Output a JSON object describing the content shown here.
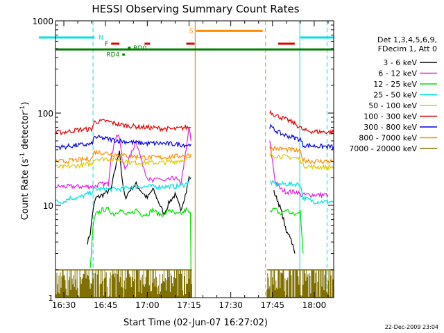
{
  "chart_data": {
    "type": "line",
    "title": "HESSI Observing Summary Count Rates",
    "xlabel": "Start Time (02-Jun-07 16:27:02)",
    "ylabel": "Count Rate (s⁻¹ detector⁻¹)",
    "ylabel_parts": {
      "pre": "Count Rate (s",
      "sup1": "-1",
      "mid": " detector",
      "sup2": "-1",
      "post": ")"
    },
    "x_ticks": [
      "16:30",
      "16:45",
      "17:00",
      "17:15",
      "17:30",
      "17:45",
      "18:00"
    ],
    "x_tick_minutes": [
      990,
      1005,
      1020,
      1035,
      1050,
      1065,
      1080
    ],
    "xlim_minutes": [
      987,
      1087
    ],
    "y_scale": "log",
    "ylim": [
      1,
      1000
    ],
    "y_ticks": [
      {
        "v": 1,
        "label": "1"
      },
      {
        "v": 10,
        "label": "10"
      },
      {
        "v": 100,
        "label": "100"
      },
      {
        "v": 1000,
        "label": "1000"
      }
    ],
    "legend": {
      "header": [
        "Det 1,3,4,5,6,9,",
        "FDecim 1, Att 0"
      ],
      "position": "right",
      "entries": [
        {
          "label": "3 - 6 keV",
          "color": "#000000"
        },
        {
          "label": "6 - 12 keV",
          "color": "#e020e0"
        },
        {
          "label": "12 - 25 keV",
          "color": "#00e000"
        },
        {
          "label": "25 - 50 keV",
          "color": "#00e0e0"
        },
        {
          "label": "50 - 100 keV",
          "color": "#e0c800"
        },
        {
          "label": "100 - 300 keV",
          "color": "#e00000"
        },
        {
          "label": "300 - 800 keV",
          "color": "#0000e0"
        },
        {
          "label": "800 - 7000 keV",
          "color": "#ff8c00"
        },
        {
          "label": "7000 - 20000 keV",
          "color": "#807000"
        }
      ]
    },
    "series": [
      {
        "name": "3 - 6 keV",
        "color": "#000000",
        "points": [
          [
            998.5,
            4
          ],
          [
            999.5,
            5
          ],
          [
            1000.5,
            9
          ],
          [
            1001.5,
            12
          ],
          [
            1004,
            13
          ],
          [
            1007,
            15
          ],
          [
            1009,
            30
          ],
          [
            1010,
            40
          ],
          [
            1011,
            18
          ],
          [
            1012,
            12
          ],
          [
            1014,
            15
          ],
          [
            1016,
            17
          ],
          [
            1018,
            14
          ],
          [
            1020,
            12
          ],
          [
            1022,
            15
          ],
          [
            1024,
            11
          ],
          [
            1026,
            8
          ],
          [
            1028,
            11
          ],
          [
            1030,
            13
          ],
          [
            1032,
            9
          ],
          [
            1034,
            14
          ],
          [
            1035,
            20
          ],
          [
            1035.7,
            20
          ]
        ],
        "points_b": [
          [
            1065.5,
            14
          ],
          [
            1067,
            11
          ],
          [
            1068,
            9
          ],
          [
            1069,
            7
          ],
          [
            1070,
            5
          ],
          [
            1071,
            5
          ],
          [
            1072,
            4
          ],
          [
            1073,
            3
          ]
        ]
      },
      {
        "name": "6 - 12 keV",
        "color": "#e020e0",
        "points": [
          [
            981,
            16
          ],
          [
            1001,
            16
          ],
          [
            1003,
            17
          ],
          [
            1006,
            17
          ],
          [
            1007,
            35
          ],
          [
            1008,
            45
          ],
          [
            1009,
            60
          ],
          [
            1010,
            55
          ],
          [
            1011,
            30
          ],
          [
            1012,
            25
          ],
          [
            1014,
            35
          ],
          [
            1016,
            50
          ],
          [
            1018,
            30
          ],
          [
            1020,
            20
          ],
          [
            1022,
            18
          ],
          [
            1024,
            20
          ],
          [
            1026,
            18
          ],
          [
            1028,
            19
          ],
          [
            1030,
            20
          ],
          [
            1032,
            17
          ],
          [
            1034,
            40
          ],
          [
            1035,
            70
          ],
          [
            1035.7,
            50
          ]
        ],
        "points_b": [
          [
            1064,
            50
          ],
          [
            1065,
            30
          ],
          [
            1066,
            18
          ],
          [
            1068,
            15
          ],
          [
            1070,
            14
          ],
          [
            1074,
            14
          ],
          [
            1075,
            13
          ],
          [
            1085,
            13
          ]
        ]
      },
      {
        "name": "12 - 25 keV",
        "color": "#00e000",
        "points": [
          [
            999.5,
            2
          ],
          [
            1000.5,
            6
          ],
          [
            1001.5,
            8
          ],
          [
            1004,
            9
          ],
          [
            1006,
            9
          ],
          [
            1008,
            8
          ],
          [
            1010,
            9
          ],
          [
            1012,
            8
          ],
          [
            1014,
            8
          ],
          [
            1016,
            9
          ],
          [
            1018,
            8
          ],
          [
            1020,
            8
          ],
          [
            1022,
            9
          ],
          [
            1024,
            8
          ],
          [
            1026,
            8
          ],
          [
            1028,
            9
          ],
          [
            1030,
            8
          ],
          [
            1032,
            8
          ],
          [
            1034,
            9
          ],
          [
            1035.5,
            8
          ],
          [
            1035.7,
            2
          ]
        ],
        "points_b": [
          [
            1064,
            9
          ],
          [
            1066,
            9
          ],
          [
            1068,
            8
          ],
          [
            1070,
            9
          ],
          [
            1072,
            8
          ],
          [
            1074,
            8
          ],
          [
            1075,
            9
          ],
          [
            1076,
            3
          ]
        ]
      },
      {
        "name": "25 - 50 keV",
        "color": "#00e0e0",
        "points": [
          [
            987,
            11
          ],
          [
            990,
            11
          ],
          [
            992,
            12
          ],
          [
            995,
            12
          ],
          [
            998,
            13
          ],
          [
            1000,
            14
          ],
          [
            1001,
            15
          ],
          [
            1005,
            15
          ],
          [
            1010,
            15
          ],
          [
            1015,
            16
          ],
          [
            1020,
            16
          ],
          [
            1025,
            16
          ],
          [
            1030,
            16
          ],
          [
            1034,
            17
          ],
          [
            1035.7,
            20
          ]
        ],
        "points_b": [
          [
            1064,
            18
          ],
          [
            1066,
            17
          ],
          [
            1070,
            17
          ],
          [
            1075,
            17
          ],
          [
            1076,
            12
          ],
          [
            1080,
            11
          ],
          [
            1087,
            11
          ]
        ]
      },
      {
        "name": "50 - 100 keV",
        "color": "#e0c800",
        "points": [
          [
            987,
            26
          ],
          [
            990,
            26
          ],
          [
            995,
            27
          ],
          [
            1000,
            28
          ],
          [
            1001,
            32
          ],
          [
            1005,
            32
          ],
          [
            1010,
            31
          ],
          [
            1015,
            29
          ],
          [
            1020,
            29
          ],
          [
            1025,
            29
          ],
          [
            1030,
            30
          ],
          [
            1035,
            32
          ],
          [
            1035.7,
            33
          ]
        ],
        "points_b": [
          [
            1064,
            35
          ],
          [
            1068,
            34
          ],
          [
            1072,
            33
          ],
          [
            1075,
            32
          ],
          [
            1076,
            27
          ],
          [
            1080,
            26
          ],
          [
            1087,
            26
          ]
        ]
      },
      {
        "name": "100 - 300 keV",
        "color": "#e00000",
        "points": [
          [
            987,
            62
          ],
          [
            990,
            62
          ],
          [
            995,
            66
          ],
          [
            1000,
            67
          ],
          [
            1001,
            80
          ],
          [
            1005,
            82
          ],
          [
            1008,
            78
          ],
          [
            1010,
            75
          ],
          [
            1015,
            72
          ],
          [
            1020,
            70
          ],
          [
            1025,
            68
          ],
          [
            1030,
            67
          ],
          [
            1034,
            70
          ],
          [
            1035.7,
            70
          ]
        ],
        "points_b": [
          [
            1064,
            105
          ],
          [
            1066,
            95
          ],
          [
            1068,
            90
          ],
          [
            1070,
            85
          ],
          [
            1072,
            80
          ],
          [
            1075,
            70
          ],
          [
            1076,
            65
          ],
          [
            1080,
            63
          ],
          [
            1087,
            62
          ]
        ]
      },
      {
        "name": "300 - 800 keV",
        "color": "#0000e0",
        "points": [
          [
            987,
            43
          ],
          [
            990,
            43
          ],
          [
            995,
            45
          ],
          [
            1000,
            46
          ],
          [
            1001,
            55
          ],
          [
            1005,
            53
          ],
          [
            1010,
            50
          ],
          [
            1015,
            48
          ],
          [
            1020,
            47
          ],
          [
            1025,
            47
          ],
          [
            1030,
            46
          ],
          [
            1035,
            45
          ],
          [
            1035.7,
            46
          ]
        ],
        "points_b": [
          [
            1064,
            72
          ],
          [
            1066,
            65
          ],
          [
            1068,
            60
          ],
          [
            1070,
            57
          ],
          [
            1072,
            55
          ],
          [
            1075,
            52
          ],
          [
            1076,
            45
          ],
          [
            1080,
            44
          ],
          [
            1087,
            43
          ]
        ]
      },
      {
        "name": "800 - 7000 keV",
        "color": "#ff8c00",
        "points": [
          [
            987,
            30
          ],
          [
            990,
            30
          ],
          [
            995,
            31
          ],
          [
            1000,
            32
          ],
          [
            1001,
            38
          ],
          [
            1005,
            37
          ],
          [
            1010,
            35
          ],
          [
            1015,
            34
          ],
          [
            1020,
            33
          ],
          [
            1025,
            33
          ],
          [
            1030,
            34
          ],
          [
            1035,
            35
          ],
          [
            1035.7,
            36
          ]
        ],
        "points_b": [
          [
            1064,
            42
          ],
          [
            1068,
            41
          ],
          [
            1072,
            40
          ],
          [
            1075,
            38
          ],
          [
            1076,
            31
          ],
          [
            1080,
            30
          ],
          [
            1087,
            30
          ]
        ]
      },
      {
        "name": "7000 - 20000 keV",
        "color": "#807000",
        "band": [
          [
            987,
            1036
          ],
          [
            1063,
            1087
          ]
        ],
        "level": 2
      }
    ],
    "flag_bars": [
      {
        "label": "N",
        "color": "#00e0e0",
        "start": 981,
        "end": 1001,
        "level": 660
      },
      {
        "label": "",
        "color": "#00e0e0",
        "start": 1075,
        "end": 1087,
        "level": 660
      },
      {
        "label": "F",
        "color": "#e00000",
        "start": 1007,
        "end": 1010,
        "level": 565
      },
      {
        "label": "",
        "color": "#e00000",
        "start": 1019,
        "end": 1021,
        "level": 565
      },
      {
        "label": "",
        "color": "#e00000",
        "start": 1034,
        "end": 1037,
        "level": 565
      },
      {
        "label": "",
        "color": "#e00000",
        "start": 1067,
        "end": 1073,
        "level": 565
      },
      {
        "label": "S",
        "color": "#ff8c00",
        "start": 1037.5,
        "end": 1061.5,
        "level": 780
      },
      {
        "label": "",
        "color": "#008000",
        "start": 987,
        "end": 1087,
        "level": 490
      },
      {
        "label": "RD0",
        "color": "#008000",
        "start": 1013,
        "end": 1014,
        "level": 510
      },
      {
        "label": "RD4",
        "color": "#008000",
        "start": 1011,
        "end": 1012,
        "level": 430
      }
    ],
    "vlines": [
      {
        "x": 1000.5,
        "color": "#00e0e0",
        "dash": true
      },
      {
        "x": 1037.2,
        "color": "#d08000",
        "dash": false
      },
      {
        "x": 1062.5,
        "color": "#ff8c00",
        "dash": true
      },
      {
        "x": 1074.8,
        "color": "#00e0e0",
        "dash": false
      },
      {
        "x": 1084.6,
        "color": "#00e0e0",
        "dash": true
      }
    ],
    "timestamp": "22-Dec-2009 23:04"
  }
}
